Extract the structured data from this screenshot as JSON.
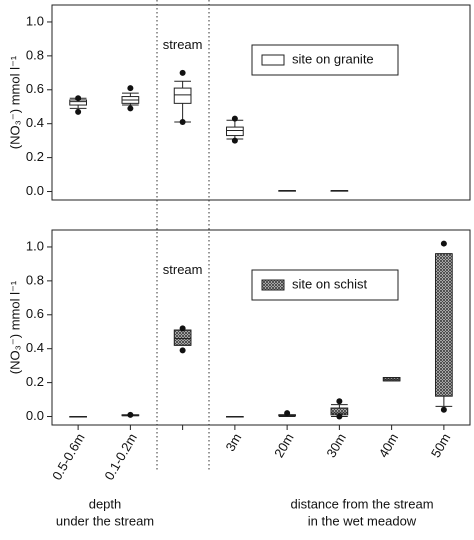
{
  "chart_data": [
    {
      "type": "box",
      "ylabel": "(NO₃⁻) mmol l⁻¹",
      "annotation": "stream",
      "annotation_index": 2,
      "ylim": [
        -0.05,
        1.1
      ],
      "yticks": [
        {
          "value": 0,
          "label": "0.0"
        },
        0.2,
        0.4,
        0.6,
        0.8,
        {
          "value": 1,
          "label": "1.0"
        }
      ],
      "legend": "upper center",
      "series": [
        {
          "name": "site on granite",
          "color": "#ffffff",
          "hatch": false,
          "low": [
            0.49,
            0.51,
            0.41,
            0.31,
            0.005,
            0.005,
            null,
            null
          ],
          "q1": [
            0.51,
            0.52,
            0.52,
            0.33,
            0.005,
            0.005,
            null,
            null
          ],
          "median": [
            0.53,
            0.54,
            0.57,
            0.36,
            0.005,
            0.005,
            null,
            null
          ],
          "q3": [
            0.54,
            0.56,
            0.61,
            0.38,
            0.005,
            0.005,
            null,
            null
          ],
          "high": [
            0.55,
            0.58,
            0.65,
            0.42,
            0.005,
            0.005,
            null,
            null
          ],
          "min": [
            0.47,
            0.49,
            0.41,
            0.3,
            null,
            null,
            null,
            null
          ],
          "max": [
            0.55,
            0.61,
            0.7,
            0.43,
            null,
            null,
            null,
            null
          ]
        }
      ]
    },
    {
      "type": "box",
      "ylabel": "(NO₃⁻) mmol l⁻¹",
      "annotation": "stream",
      "annotation_index": 2,
      "categories": [
        "0.5-0.6m",
        "0.1-0.2m",
        null,
        "3m",
        "20m",
        "30m",
        "40m",
        "50m"
      ],
      "ylim": [
        -0.05,
        1.1
      ],
      "yticks": [
        {
          "value": 0,
          "label": "0.0"
        },
        0.2,
        0.4,
        0.6,
        0.8,
        {
          "value": 1,
          "label": "1.0"
        }
      ],
      "legend": "upper center",
      "group_labels": [
        [
          "depth",
          "under the stream"
        ],
        [
          "distance from the stream",
          "in the wet meadow"
        ]
      ],
      "series": [
        {
          "name": "site on schist",
          "color": "#444444",
          "hatch": true,
          "low": [
            0,
            0.005,
            0.42,
            0,
            0,
            0,
            0.21,
            0.06
          ],
          "q1": [
            0,
            0.005,
            0.42,
            0,
            0.005,
            0.01,
            0.21,
            0.12
          ],
          "median": [
            0,
            0.005,
            0.46,
            0,
            0.01,
            0.02,
            0.22,
            null
          ],
          "q3": [
            0,
            0.01,
            0.51,
            0,
            0.01,
            0.05,
            0.23,
            0.96
          ],
          "high": [
            0,
            0.01,
            0.51,
            0,
            0.01,
            0.07,
            0.23,
            0.96
          ],
          "min": [
            null,
            null,
            0.39,
            null,
            null,
            0,
            null,
            0.04
          ],
          "max": [
            null,
            0.01,
            0.52,
            null,
            0.02,
            0.09,
            null,
            1.02
          ]
        }
      ]
    }
  ]
}
